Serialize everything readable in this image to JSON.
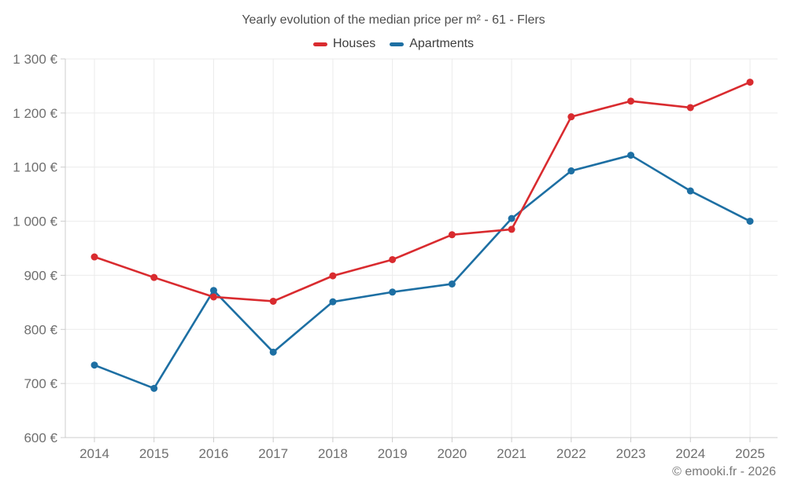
{
  "header": {
    "title": "Yearly evolution of the median price per m² - 61 - Flers"
  },
  "footer": {
    "attribution": "© emooki.fr - 2026"
  },
  "chart_data": {
    "type": "line",
    "title": "Yearly evolution of the median price per m² - 61 - Flers",
    "categories": [
      "2014",
      "2015",
      "2016",
      "2017",
      "2018",
      "2019",
      "2020",
      "2021",
      "2022",
      "2023",
      "2024",
      "2025"
    ],
    "series": [
      {
        "name": "Houses",
        "color": "#d92b2f",
        "values": [
          934,
          896,
          860,
          852,
          899,
          929,
          975,
          985,
          1193,
          1222,
          1210,
          1257
        ]
      },
      {
        "name": "Apartments",
        "color": "#1d6fa3",
        "values": [
          734,
          691,
          872,
          758,
          851,
          869,
          884,
          1005,
          1093,
          1122,
          1056,
          1000
        ]
      }
    ],
    "xlabel": "",
    "ylabel": "",
    "ylim": [
      600,
      1300
    ],
    "y_ticks": [
      {
        "value": 600,
        "label": "600 €"
      },
      {
        "value": 700,
        "label": "700 €"
      },
      {
        "value": 800,
        "label": "800 €"
      },
      {
        "value": 900,
        "label": "900 €"
      },
      {
        "value": 1000,
        "label": "1 000 €"
      },
      {
        "value": 1100,
        "label": "1 100 €"
      },
      {
        "value": 1200,
        "label": "1 200 €"
      },
      {
        "value": 1300,
        "label": "1 300 €"
      }
    ],
    "grid": true,
    "legend_position": "top",
    "colors": {
      "grid": "#ebebeb",
      "axis": "#cccccc",
      "tick_label": "#6f6f6f"
    }
  }
}
